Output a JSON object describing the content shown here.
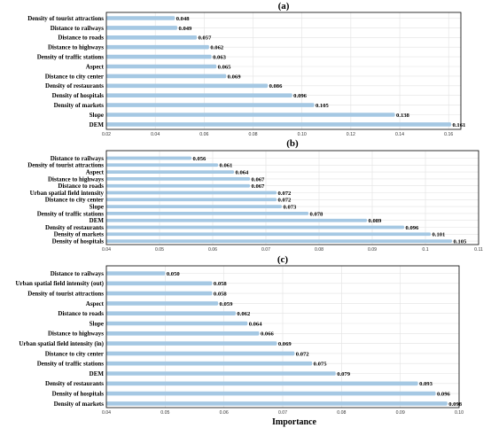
{
  "colors": {
    "bar": "#a5c8e3",
    "grid": "#e2e2e2",
    "axis": "#000000"
  },
  "xlabel": "Importance",
  "chart_data": [
    {
      "type": "bar",
      "orientation": "horizontal",
      "title": "(a)",
      "xlim": [
        0.02,
        0.165
      ],
      "ticks": [
        "0.02",
        "0.04",
        "0.06",
        "0.08",
        "0.10",
        "0.12",
        "0.14",
        "0.16"
      ],
      "grid": true,
      "categories": [
        "Density of tourist attractions",
        "Distance to railways",
        "Distance to roads",
        "Distance to highways",
        "Density of traffic stations",
        "Aspect",
        "Distance to city center",
        "Density of restaurants",
        "Density of hospitals",
        "Density of markets",
        "Slope",
        "DEM"
      ],
      "values": [
        0.048,
        0.049,
        0.057,
        0.062,
        0.063,
        0.065,
        0.069,
        0.086,
        0.096,
        0.105,
        0.138,
        0.161
      ],
      "labels": [
        "0.048",
        "0.049",
        "0.057",
        "0.062",
        "0.063",
        "0.065",
        "0.069",
        "0.086",
        "0.096",
        "0.105",
        "0.138",
        "0.161"
      ]
    },
    {
      "type": "bar",
      "orientation": "horizontal",
      "title": "(b)",
      "xlim": [
        0.04,
        0.11
      ],
      "ticks": [
        "0.04",
        "0.05",
        "0.06",
        "0.07",
        "0.08",
        "0.09",
        "0.1",
        "0.11"
      ],
      "grid": true,
      "categories": [
        "Distance to railways",
        "Density of tourist attractions",
        "Aspect",
        "Distance to highways",
        "Distance to roads",
        "Urban spatial field intensity",
        "Distance to city center",
        "Slope",
        "Density of traffic stations",
        "DEM",
        "Density of restaurants",
        "Density of markets",
        "Density of hospitals"
      ],
      "values": [
        0.056,
        0.061,
        0.064,
        0.067,
        0.067,
        0.072,
        0.072,
        0.073,
        0.078,
        0.089,
        0.096,
        0.101,
        0.105
      ],
      "labels": [
        "0.056",
        "0.061",
        "0.064",
        "0.067",
        "0.067",
        "0.072",
        "0.072",
        "0.073",
        "0.078",
        "0.089",
        "0.096",
        "0.101",
        "0.105"
      ]
    },
    {
      "type": "bar",
      "orientation": "horizontal",
      "title": "(c)",
      "xlim": [
        0.04,
        0.1
      ],
      "ticks": [
        "0.04",
        "0.05",
        "0.06",
        "0.07",
        "0.08",
        "0.09",
        "0.10"
      ],
      "grid": true,
      "categories": [
        "Distance to railways",
        "Urban spatial field intensity (out)",
        "Density of tourist attractions",
        "Aspect",
        "Distance to roads",
        "Slope",
        "Distance to highways",
        "Urban spatial field intensity (in)",
        "Distance to city center",
        "Density of traffic stations",
        "DEM",
        "Density of restaurants",
        "Density of hospitals",
        "Density of markets"
      ],
      "values": [
        0.05,
        0.058,
        0.058,
        0.059,
        0.062,
        0.064,
        0.066,
        0.069,
        0.072,
        0.075,
        0.079,
        0.093,
        0.096,
        0.098
      ],
      "labels": [
        "0.050",
        "0.058",
        "0.058",
        "0.059",
        "0.062",
        "0.064",
        "0.066",
        "0.069",
        "0.072",
        "0.075",
        "0.079",
        "0.093",
        "0.096",
        "0.098"
      ]
    }
  ]
}
